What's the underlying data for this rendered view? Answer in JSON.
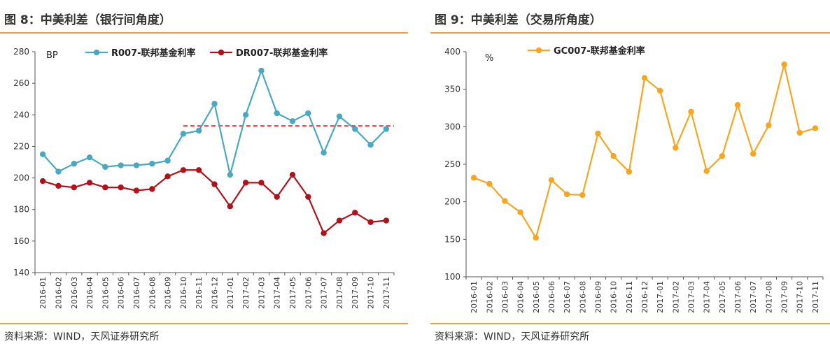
{
  "panels": [
    {
      "title": "图 8：中美利差（银行间角度）",
      "source": "资料来源：WIND，天风证券研究所"
    },
    {
      "title": "图 9：中美利差（交易所角度）",
      "source": "资料来源：WIND，天风证券研究所"
    }
  ],
  "chart_data": [
    {
      "type": "line",
      "unit_label": "BP",
      "categories": [
        "2016-01",
        "2016-02",
        "2016-03",
        "2016-04",
        "2016-05",
        "2016-06",
        "2016-07",
        "2016-08",
        "2016-09",
        "2016-10",
        "2016-11",
        "2016-12",
        "2017-01",
        "2017-02",
        "2017-03",
        "2017-04",
        "2017-05",
        "2017-06",
        "2017-07",
        "2017-08",
        "2017-09",
        "2017-10",
        "2017-11"
      ],
      "ylim": [
        140,
        280
      ],
      "yticks": [
        140,
        160,
        180,
        200,
        220,
        240,
        260,
        280
      ],
      "legend_position": "top",
      "series": [
        {
          "name": "R007-联邦基金利率",
          "color": "#4aa9c0",
          "values": [
            215,
            204,
            209,
            213,
            207,
            208,
            208,
            209,
            211,
            228,
            230,
            247,
            202,
            240,
            268,
            241,
            236,
            241,
            216,
            239,
            231,
            221,
            231
          ]
        },
        {
          "name": "DR007-联邦基金利率",
          "color": "#b0131c",
          "values": [
            198,
            195,
            194,
            197,
            194,
            194,
            192,
            193,
            201,
            205,
            205,
            196,
            182,
            197,
            197,
            188,
            202,
            188,
            165,
            173,
            178,
            172,
            173
          ]
        }
      ],
      "reference_line": {
        "value": 233,
        "from_category": "2016-10",
        "to_category": "2017-11",
        "color": "#e02020"
      }
    },
    {
      "type": "line",
      "unit_label": "%",
      "categories": [
        "2016-01",
        "2016-02",
        "2016-03",
        "2016-04",
        "2016-05",
        "2016-06",
        "2016-07",
        "2016-08",
        "2016-09",
        "2016-10",
        "2016-11",
        "2016-12",
        "2017-01",
        "2017-02",
        "2017-03",
        "2017-04",
        "2017-05",
        "2017-06",
        "2017-07",
        "2017-08",
        "2017-09",
        "2017-10",
        "2017-11"
      ],
      "ylim": [
        100,
        400
      ],
      "yticks": [
        100,
        150,
        200,
        250,
        300,
        350,
        400
      ],
      "legend_position": "top",
      "series": [
        {
          "name": "GC007-联邦基金利率",
          "color": "#f5a623",
          "values": [
            232,
            224,
            201,
            186,
            152,
            229,
            210,
            209,
            291,
            261,
            240,
            365,
            348,
            272,
            320,
            241,
            261,
            329,
            264,
            302,
            383,
            292,
            298
          ]
        }
      ]
    }
  ]
}
